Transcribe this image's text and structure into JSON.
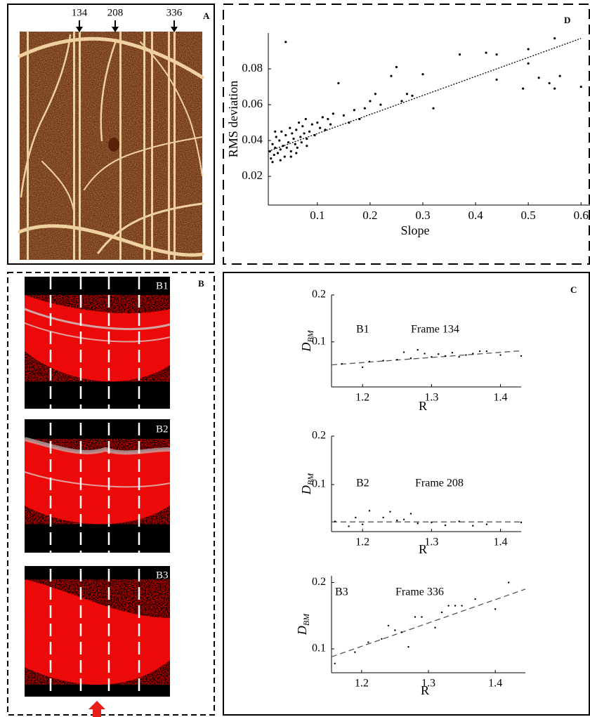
{
  "panel_labels": [
    "A",
    "B",
    "C",
    "D"
  ],
  "panel_a": {
    "frame_markers": [
      "134",
      "208",
      "336"
    ]
  },
  "panel_b": {
    "image_labels": [
      "B1",
      "B2",
      "B3"
    ]
  },
  "chart_data": [
    {
      "type": "scatter",
      "xlabel": "Slope",
      "ylabel": "RMS deviation",
      "xlim": [
        0.007,
        0.617
      ],
      "ylim": [
        0.004,
        0.1
      ],
      "xticks": [
        0.1,
        0.2,
        0.3,
        0.4,
        0.5,
        0.6
      ],
      "yticks": [
        0.02,
        0.04,
        0.06,
        0.08
      ],
      "color": "#000000",
      "x": [
        0.01,
        0.012,
        0.015,
        0.018,
        0.02,
        0.022,
        0.025,
        0.028,
        0.03,
        0.032,
        0.035,
        0.038,
        0.04,
        0.042,
        0.045,
        0.048,
        0.05,
        0.052,
        0.055,
        0.058,
        0.06,
        0.062,
        0.065,
        0.068,
        0.07,
        0.072,
        0.075,
        0.078,
        0.08,
        0.085,
        0.09,
        0.095,
        0.1,
        0.105,
        0.11,
        0.115,
        0.12,
        0.125,
        0.13,
        0.14,
        0.15,
        0.16,
        0.17,
        0.18,
        0.19,
        0.2,
        0.21,
        0.22,
        0.24,
        0.25,
        0.26,
        0.27,
        0.28,
        0.3,
        0.32,
        0.37,
        0.42,
        0.44,
        0.44,
        0.49,
        0.5,
        0.5,
        0.52,
        0.54,
        0.55,
        0.55,
        0.56,
        0.6,
        0.04,
        0.015,
        0.03,
        0.05,
        0.06,
        0.02,
        0.08
      ],
      "values": [
        0.034,
        0.03,
        0.038,
        0.032,
        0.036,
        0.042,
        0.033,
        0.04,
        0.035,
        0.045,
        0.037,
        0.031,
        0.043,
        0.036,
        0.039,
        0.047,
        0.034,
        0.044,
        0.041,
        0.038,
        0.046,
        0.036,
        0.05,
        0.042,
        0.039,
        0.048,
        0.044,
        0.052,
        0.041,
        0.045,
        0.049,
        0.043,
        0.05,
        0.047,
        0.053,
        0.046,
        0.052,
        0.049,
        0.055,
        0.072,
        0.054,
        0.05,
        0.057,
        0.052,
        0.058,
        0.062,
        0.066,
        0.06,
        0.076,
        0.081,
        0.062,
        0.066,
        0.065,
        0.077,
        0.058,
        0.088,
        0.089,
        0.088,
        0.074,
        0.069,
        0.091,
        0.083,
        0.075,
        0.072,
        0.097,
        0.069,
        0.076,
        0.07,
        0.095,
        0.028,
        0.029,
        0.031,
        0.033,
        0.045,
        0.037
      ],
      "fit_line": {
        "x": [
          0.007,
          0.6
        ],
        "values": [
          0.034,
          0.097
        ]
      }
    },
    {
      "type": "scatter",
      "xlabel": "R",
      "ylabel": "D",
      "ylabel_sub": "BM",
      "annotations": [
        "B1",
        "Frame 134"
      ],
      "xlim": [
        1.155,
        1.43
      ],
      "ylim": [
        0.004,
        0.2
      ],
      "xticks": [
        1.2,
        1.3,
        1.4
      ],
      "yticks": [
        0.1,
        0.2
      ],
      "color": "#000000",
      "x": [
        1.17,
        1.2,
        1.21,
        1.23,
        1.25,
        1.26,
        1.27,
        1.28,
        1.29,
        1.3,
        1.31,
        1.32,
        1.33,
        1.34,
        1.35,
        1.36,
        1.37,
        1.38,
        1.4,
        1.43
      ],
      "values": [
        0.053,
        0.046,
        0.058,
        0.06,
        0.062,
        0.078,
        0.065,
        0.083,
        0.075,
        0.068,
        0.074,
        0.07,
        0.077,
        0.068,
        0.072,
        0.075,
        0.08,
        0.08,
        0.072,
        0.07
      ],
      "fit_line": {
        "x": [
          1.155,
          1.43
        ],
        "values": [
          0.051,
          0.081
        ]
      }
    },
    {
      "type": "scatter",
      "xlabel": "R",
      "ylabel": "D",
      "ylabel_sub": "BM",
      "annotations": [
        "B2",
        "Frame 208"
      ],
      "xlim": [
        1.155,
        1.43
      ],
      "ylim": [
        0.003,
        0.2
      ],
      "xticks": [
        1.2,
        1.3,
        1.4
      ],
      "yticks": [
        0.1,
        0.2
      ],
      "color": "#000000",
      "x": [
        1.16,
        1.18,
        1.19,
        1.2,
        1.21,
        1.23,
        1.24,
        1.25,
        1.26,
        1.27,
        1.28,
        1.3,
        1.32,
        1.34,
        1.36,
        1.38,
        1.43
      ],
      "values": [
        0.024,
        0.014,
        0.032,
        0.018,
        0.046,
        0.032,
        0.044,
        0.026,
        0.028,
        0.04,
        0.02,
        0.022,
        0.016,
        0.024,
        0.015,
        0.018,
        0.022
      ],
      "fit_line": {
        "x": [
          1.155,
          1.43
        ],
        "values": [
          0.023,
          0.023
        ]
      }
    },
    {
      "type": "scatter",
      "xlabel": "R",
      "ylabel": "D",
      "ylabel_sub": "BM",
      "annotations": [
        "B3",
        "Frame 336"
      ],
      "xlim": [
        1.155,
        1.445
      ],
      "ylim": [
        0.064,
        0.21
      ],
      "xticks": [
        1.2,
        1.3,
        1.4
      ],
      "yticks": [
        0.1,
        0.2
      ],
      "color": "#000000",
      "x": [
        1.16,
        1.19,
        1.21,
        1.23,
        1.24,
        1.25,
        1.26,
        1.27,
        1.28,
        1.29,
        1.31,
        1.32,
        1.33,
        1.34,
        1.35,
        1.37,
        1.4,
        1.42
      ],
      "values": [
        0.078,
        0.095,
        0.11,
        0.115,
        0.135,
        0.128,
        0.125,
        0.103,
        0.148,
        0.148,
        0.132,
        0.155,
        0.165,
        0.165,
        0.165,
        0.175,
        0.16,
        0.2
      ],
      "fit_line": {
        "x": [
          1.155,
          1.445
        ],
        "values": [
          0.088,
          0.19
        ]
      }
    }
  ]
}
